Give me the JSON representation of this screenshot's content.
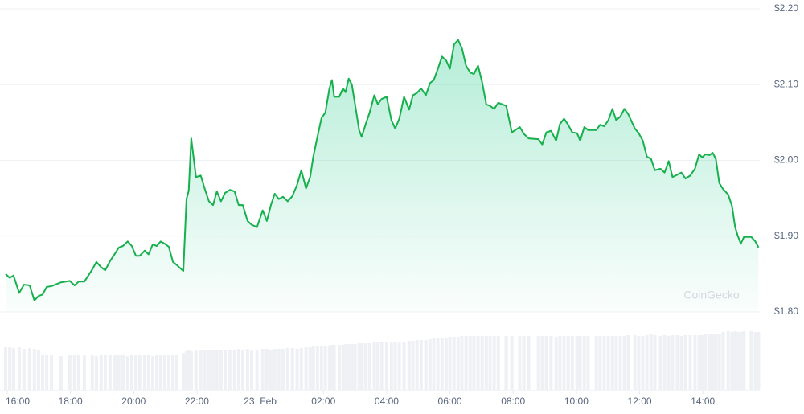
{
  "chart_data": {
    "type": "area",
    "watermark": "CoinGecko",
    "color": "#16b04d",
    "grid": true,
    "xlim": [
      -0.05,
      23.8
    ],
    "xticks": [
      {
        "value": 0,
        "label": "16:00"
      },
      {
        "value": 2,
        "label": "18:00"
      },
      {
        "value": 4,
        "label": "20:00"
      },
      {
        "value": 6,
        "label": "22:00"
      },
      {
        "value": 8,
        "label": "23. Feb"
      },
      {
        "value": 10,
        "label": "02:00"
      },
      {
        "value": 12,
        "label": "04:00"
      },
      {
        "value": 14,
        "label": "06:00"
      },
      {
        "value": 16,
        "label": "08:00"
      },
      {
        "value": 18,
        "label": "10:00"
      },
      {
        "value": 20,
        "label": "12:00"
      },
      {
        "value": 22,
        "label": "14:00"
      }
    ],
    "ylim": [
      1.8,
      2.2
    ],
    "yticks": [
      {
        "value": 1.8,
        "label": "$1.80"
      },
      {
        "value": 1.9,
        "label": "$1.90"
      },
      {
        "value": 2.0,
        "label": "$2.00"
      },
      {
        "value": 2.1,
        "label": "$2.10"
      },
      {
        "value": 2.2,
        "label": "$2.20"
      }
    ],
    "volume_lim": [
      0,
      100
    ],
    "x": [
      -0.05,
      0.08,
      0.2,
      0.38,
      0.53,
      0.71,
      0.86,
      0.99,
      1.12,
      1.25,
      1.4,
      1.7,
      1.98,
      2.13,
      2.26,
      2.44,
      2.69,
      2.82,
      2.97,
      3.1,
      3.25,
      3.41,
      3.53,
      3.66,
      3.81,
      3.94,
      4.07,
      4.19,
      4.35,
      4.47,
      4.6,
      4.73,
      4.85,
      4.98,
      5.11,
      5.24,
      5.36,
      5.57,
      5.67,
      5.74,
      5.82,
      5.97,
      6.12,
      6.25,
      6.38,
      6.51,
      6.63,
      6.76,
      6.89,
      7.04,
      7.19,
      7.32,
      7.45,
      7.6,
      7.73,
      7.9,
      8.08,
      8.21,
      8.34,
      8.46,
      8.59,
      8.72,
      8.87,
      9.02,
      9.17,
      9.3,
      9.45,
      9.58,
      9.68,
      9.81,
      9.94,
      10.06,
      10.19,
      10.27,
      10.34,
      10.5,
      10.62,
      10.7,
      10.8,
      10.9,
      11.0,
      11.13,
      11.21,
      11.33,
      11.46,
      11.61,
      11.72,
      11.84,
      12.0,
      12.15,
      12.27,
      12.4,
      12.55,
      12.71,
      12.83,
      12.96,
      13.09,
      13.24,
      13.37,
      13.49,
      13.62,
      13.75,
      13.88,
      14.0,
      14.13,
      14.26,
      14.38,
      14.51,
      14.64,
      14.76,
      14.89,
      15.02,
      15.15,
      15.27,
      15.4,
      15.53,
      15.78,
      15.96,
      16.21,
      16.34,
      16.49,
      16.8,
      16.92,
      17.05,
      17.2,
      17.36,
      17.48,
      17.61,
      17.74,
      17.87,
      18.02,
      18.12,
      18.25,
      18.37,
      18.63,
      18.75,
      18.88,
      19.01,
      19.14,
      19.26,
      19.39,
      19.52,
      19.64,
      19.85,
      19.97,
      20.1,
      20.23,
      20.36,
      20.48,
      20.66,
      20.79,
      20.92,
      21.04,
      21.19,
      21.32,
      21.45,
      21.6,
      21.75,
      21.88,
      21.98,
      22.08,
      22.21,
      22.31,
      22.41,
      22.52,
      22.64,
      22.8,
      22.92,
      23.02,
      23.1,
      23.2,
      23.3,
      23.53,
      23.66,
      23.76
    ],
    "values": [
      1.85,
      1.845,
      1.848,
      1.825,
      1.836,
      1.835,
      1.815,
      1.821,
      1.823,
      1.833,
      1.834,
      1.839,
      1.841,
      1.835,
      1.84,
      1.84,
      1.856,
      1.866,
      1.859,
      1.855,
      1.867,
      1.877,
      1.885,
      1.887,
      1.893,
      1.887,
      1.874,
      1.874,
      1.881,
      1.876,
      1.889,
      1.887,
      1.893,
      1.89,
      1.886,
      1.866,
      1.862,
      1.854,
      1.949,
      1.96,
      2.029,
      1.978,
      1.98,
      1.962,
      1.946,
      1.941,
      1.959,
      1.946,
      1.957,
      1.961,
      1.959,
      1.941,
      1.941,
      1.92,
      1.915,
      1.912,
      1.934,
      1.92,
      1.941,
      1.956,
      1.949,
      1.952,
      1.946,
      1.953,
      1.968,
      1.987,
      1.963,
      1.978,
      2.005,
      2.031,
      2.056,
      2.063,
      2.095,
      2.106,
      2.084,
      2.084,
      2.095,
      2.09,
      2.108,
      2.1,
      2.074,
      2.04,
      2.031,
      2.047,
      2.063,
      2.086,
      2.074,
      2.081,
      2.084,
      2.053,
      2.042,
      2.055,
      2.084,
      2.067,
      2.086,
      2.089,
      2.095,
      2.086,
      2.102,
      2.106,
      2.121,
      2.137,
      2.132,
      2.121,
      2.153,
      2.159,
      2.148,
      2.125,
      2.116,
      2.114,
      2.125,
      2.103,
      2.074,
      2.072,
      2.068,
      2.076,
      2.072,
      2.037,
      2.044,
      2.035,
      2.029,
      2.028,
      2.021,
      2.037,
      2.039,
      2.026,
      2.048,
      2.055,
      2.047,
      2.037,
      2.036,
      2.026,
      2.044,
      2.04,
      2.04,
      2.047,
      2.045,
      2.053,
      2.068,
      2.053,
      2.058,
      2.068,
      2.061,
      2.042,
      2.036,
      2.026,
      2.005,
      2.002,
      1.987,
      1.989,
      1.984,
      1.999,
      1.978,
      1.981,
      1.984,
      1.976,
      1.98,
      1.989,
      2.008,
      2.004,
      2.008,
      2.007,
      2.01,
      2.002,
      1.97,
      1.962,
      1.955,
      1.94,
      1.912,
      1.901,
      1.89,
      1.899,
      1.899,
      1.893,
      1.885
    ],
    "volumes": [
      53,
      53,
      52,
      53,
      51,
      52,
      51,
      50,
      44,
      43,
      43,
      42,
      43,
      43,
      44,
      43,
      43,
      42,
      43,
      43,
      44,
      43,
      43,
      43,
      42,
      43,
      43,
      44,
      43,
      43,
      42,
      43,
      43,
      43,
      44,
      43,
      43,
      46,
      48,
      49,
      48,
      49,
      49,
      50,
      49,
      49,
      50,
      49,
      50,
      50,
      50,
      51,
      50,
      51,
      50,
      50,
      51,
      51,
      50,
      51,
      51,
      51,
      52,
      52,
      51,
      52,
      53,
      53,
      54,
      54,
      55,
      55,
      55,
      56,
      56,
      56,
      56,
      57,
      57,
      57,
      57,
      58,
      58,
      58,
      58,
      59,
      59,
      59,
      59,
      60,
      60,
      60,
      60,
      61,
      61,
      62,
      62,
      62,
      63,
      64,
      64,
      65,
      65,
      66,
      66,
      66,
      67,
      67,
      67,
      67,
      67,
      67,
      67,
      67,
      67,
      67,
      67,
      67,
      67,
      67,
      67,
      67,
      67,
      67,
      67,
      66,
      67,
      67,
      67,
      67,
      67,
      67,
      67,
      67,
      67,
      67,
      67,
      67,
      67,
      67,
      67,
      67,
      68,
      68,
      67,
      67,
      68,
      70,
      68,
      67,
      68,
      67,
      68,
      68,
      67,
      68,
      68,
      68,
      68,
      68,
      69,
      69,
      69,
      70,
      70,
      72,
      73,
      72,
      73,
      72,
      72,
      73,
      73,
      72,
      72
    ]
  }
}
